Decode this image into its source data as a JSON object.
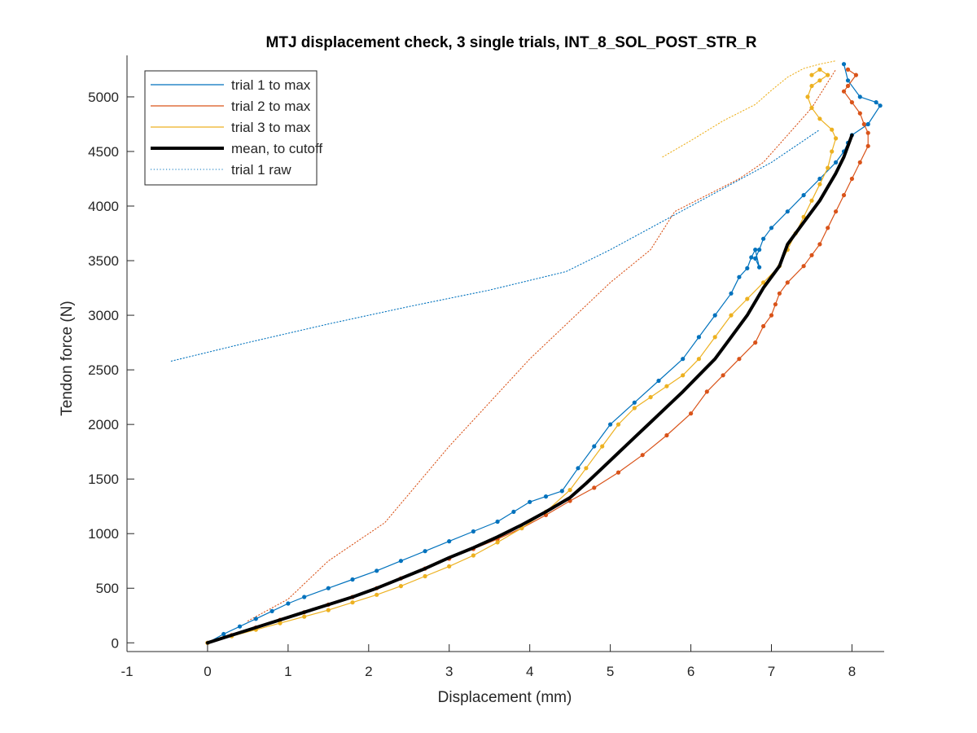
{
  "chart_data": {
    "type": "line",
    "title": "MTJ displacement check, 3 single trials, INT_8_SOL_POST_STR_R",
    "xlabel": "Displacement (mm)",
    "ylabel": "Tendon force (N)",
    "xlim": [
      -1,
      8.4
    ],
    "ylim": [
      -80,
      5380
    ],
    "xticks": [
      -1,
      0,
      1,
      2,
      3,
      4,
      5,
      6,
      7,
      8
    ],
    "yticks": [
      0,
      500,
      1000,
      1500,
      2000,
      2500,
      3000,
      3500,
      4000,
      4500,
      5000
    ],
    "grid": false,
    "legend_position": "top-left",
    "series": [
      {
        "name": "trial 1 to max",
        "color": "#0072BD",
        "style": "solid-with-markers",
        "x": [
          0,
          0.2,
          0.4,
          0.6,
          0.8,
          1.0,
          1.2,
          1.5,
          1.8,
          2.1,
          2.4,
          2.7,
          3.0,
          3.3,
          3.6,
          3.8,
          4.0,
          4.2,
          4.4,
          4.6,
          4.8,
          5.0,
          5.3,
          5.6,
          5.9,
          6.1,
          6.3,
          6.5,
          6.6,
          6.7,
          6.75,
          6.8,
          6.85,
          6.8,
          6.85,
          6.9,
          7.0,
          7.2,
          7.4,
          7.6,
          7.8,
          7.9,
          7.95,
          8.0,
          8.2,
          8.35,
          8.3,
          8.1,
          7.95,
          7.9
        ],
        "y": [
          0,
          80,
          150,
          220,
          290,
          360,
          420,
          500,
          580,
          660,
          750,
          840,
          930,
          1020,
          1110,
          1200,
          1290,
          1340,
          1390,
          1600,
          1800,
          2000,
          2200,
          2400,
          2600,
          2800,
          3000,
          3200,
          3350,
          3430,
          3530,
          3600,
          3440,
          3520,
          3600,
          3700,
          3800,
          3950,
          4100,
          4250,
          4400,
          4500,
          4580,
          4650,
          4750,
          4920,
          4950,
          5000,
          5150,
          5300
        ]
      },
      {
        "name": "trial 2 to max",
        "color": "#D95319",
        "style": "solid-with-markers",
        "x": [
          0,
          0.3,
          0.6,
          0.9,
          1.2,
          1.5,
          1.8,
          2.1,
          2.4,
          2.7,
          3.0,
          3.3,
          3.6,
          3.9,
          4.2,
          4.5,
          4.8,
          5.1,
          5.4,
          5.7,
          6.0,
          6.2,
          6.4,
          6.6,
          6.8,
          6.9,
          7.0,
          7.05,
          7.1,
          7.2,
          7.4,
          7.5,
          7.6,
          7.7,
          7.8,
          7.9,
          8.0,
          8.1,
          8.2,
          8.2,
          8.15,
          8.1,
          8.0,
          7.9,
          7.95,
          8.05,
          7.95
        ],
        "y": [
          0,
          70,
          140,
          210,
          280,
          350,
          420,
          500,
          590,
          680,
          770,
          860,
          950,
          1050,
          1170,
          1300,
          1420,
          1560,
          1720,
          1900,
          2100,
          2300,
          2450,
          2600,
          2750,
          2900,
          3000,
          3100,
          3200,
          3300,
          3450,
          3550,
          3650,
          3800,
          3950,
          4100,
          4250,
          4400,
          4550,
          4670,
          4750,
          4850,
          4950,
          5050,
          5100,
          5200,
          5250
        ]
      },
      {
        "name": "trial 3 to max",
        "color": "#EDB120",
        "style": "solid-with-markers",
        "x": [
          0,
          0.3,
          0.6,
          0.9,
          1.2,
          1.5,
          1.8,
          2.1,
          2.4,
          2.7,
          3.0,
          3.3,
          3.6,
          3.9,
          4.2,
          4.5,
          4.7,
          4.9,
          5.1,
          5.3,
          5.5,
          5.7,
          5.9,
          6.1,
          6.3,
          6.5,
          6.7,
          6.9,
          7.1,
          7.2,
          7.3,
          7.4,
          7.5,
          7.6,
          7.7,
          7.75,
          7.8,
          7.75,
          7.6,
          7.5,
          7.45,
          7.5,
          7.6,
          7.7,
          7.6,
          7.5
        ],
        "y": [
          0,
          60,
          120,
          180,
          240,
          300,
          370,
          440,
          520,
          610,
          700,
          800,
          920,
          1050,
          1200,
          1400,
          1600,
          1800,
          2000,
          2150,
          2250,
          2350,
          2450,
          2600,
          2800,
          3000,
          3150,
          3300,
          3450,
          3600,
          3750,
          3900,
          4050,
          4200,
          4350,
          4500,
          4620,
          4700,
          4800,
          4900,
          5000,
          5100,
          5150,
          5200,
          5250,
          5200
        ]
      },
      {
        "name": "mean, to cutoff",
        "color": "#000000",
        "style": "thick-solid",
        "x": [
          0,
          0.3,
          0.6,
          0.9,
          1.2,
          1.5,
          1.8,
          2.1,
          2.4,
          2.7,
          3.0,
          3.3,
          3.6,
          3.9,
          4.2,
          4.5,
          4.7,
          4.9,
          5.1,
          5.3,
          5.5,
          5.7,
          5.9,
          6.1,
          6.3,
          6.5,
          6.7,
          6.9,
          7.1,
          7.2,
          7.4,
          7.6,
          7.8,
          7.9,
          8.0
        ],
        "y": [
          0,
          70,
          140,
          210,
          280,
          350,
          420,
          500,
          590,
          680,
          780,
          870,
          970,
          1080,
          1200,
          1330,
          1460,
          1600,
          1740,
          1880,
          2020,
          2160,
          2300,
          2450,
          2600,
          2800,
          3000,
          3250,
          3450,
          3650,
          3850,
          4050,
          4300,
          4450,
          4650
        ]
      },
      {
        "name": "trial 1 raw",
        "color": "#0072BD",
        "style": "dotted",
        "x": [
          -0.45,
          0.5,
          1.5,
          2.5,
          3.5,
          4.45,
          5.0,
          5.5,
          6.0,
          6.5,
          7.0,
          7.3,
          7.6
        ],
        "y": [
          2580,
          2750,
          2920,
          3080,
          3230,
          3400,
          3600,
          3800,
          4000,
          4200,
          4400,
          4550,
          4700
        ]
      },
      {
        "name": "",
        "color": "#D95319",
        "style": "dotted",
        "x": [
          0.5,
          1.0,
          1.5,
          2.2,
          3.0,
          4.0,
          5.0,
          5.5,
          5.8,
          6.2,
          6.6,
          6.9,
          7.2,
          7.5,
          7.8
        ],
        "y": [
          200,
          400,
          750,
          1100,
          1800,
          2600,
          3300,
          3600,
          3950,
          4100,
          4250,
          4400,
          4650,
          4900,
          5250
        ]
      },
      {
        "name": "",
        "color": "#EDB120",
        "style": "dotted",
        "x": [
          5.65,
          6.0,
          6.4,
          6.8,
          7.0,
          7.2,
          7.4,
          7.6,
          7.8
        ],
        "y": [
          4450,
          4600,
          4780,
          4930,
          5060,
          5180,
          5260,
          5300,
          5330
        ]
      }
    ]
  }
}
